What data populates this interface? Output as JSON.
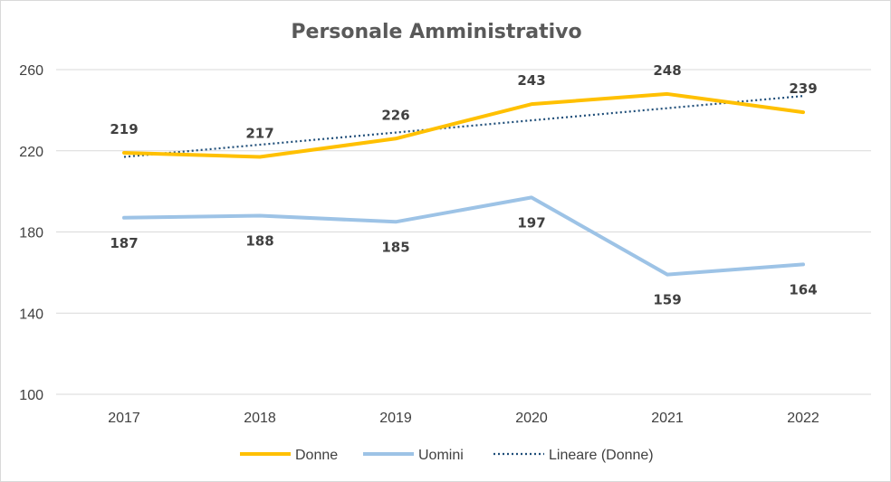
{
  "chart_data": {
    "type": "line",
    "title": "Personale Amministrativo",
    "xlabel": "",
    "ylabel": "",
    "categories": [
      "2017",
      "2018",
      "2019",
      "2020",
      "2021",
      "2022"
    ],
    "ylim": [
      100,
      260
    ],
    "yticks": [
      "100",
      "140",
      "180",
      "220",
      "260"
    ],
    "grid": true,
    "legend_position": "bottom",
    "series": [
      {
        "name": "Donne",
        "values": [
          219,
          217,
          226,
          243,
          248,
          239
        ],
        "color": "#FFC000",
        "style": "solid"
      },
      {
        "name": "Uomini",
        "values": [
          187,
          188,
          185,
          197,
          159,
          164
        ],
        "color": "#9DC3E6",
        "style": "solid"
      }
    ],
    "trendline": {
      "name": "Lineare (Donne)",
      "of_series": "Donne",
      "type": "linear",
      "color": "#1F4E79",
      "style": "dotted"
    }
  }
}
